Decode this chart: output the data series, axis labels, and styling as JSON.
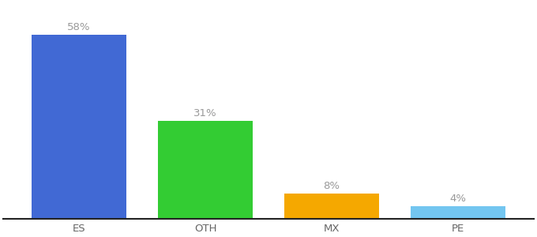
{
  "categories": [
    "ES",
    "OTH",
    "MX",
    "PE"
  ],
  "values": [
    58,
    31,
    8,
    4
  ],
  "bar_colors": [
    "#4169d4",
    "#33cc33",
    "#f5a800",
    "#73c6f0"
  ],
  "labels": [
    "58%",
    "31%",
    "8%",
    "4%"
  ],
  "ylim": [
    0,
    68
  ],
  "background_color": "#ffffff",
  "label_fontsize": 9.5,
  "tick_fontsize": 9.5,
  "bar_width": 0.75,
  "x_positions": [
    0,
    1,
    2,
    3
  ],
  "label_color": "#999999",
  "tick_color": "#666666",
  "spine_color": "#222222"
}
